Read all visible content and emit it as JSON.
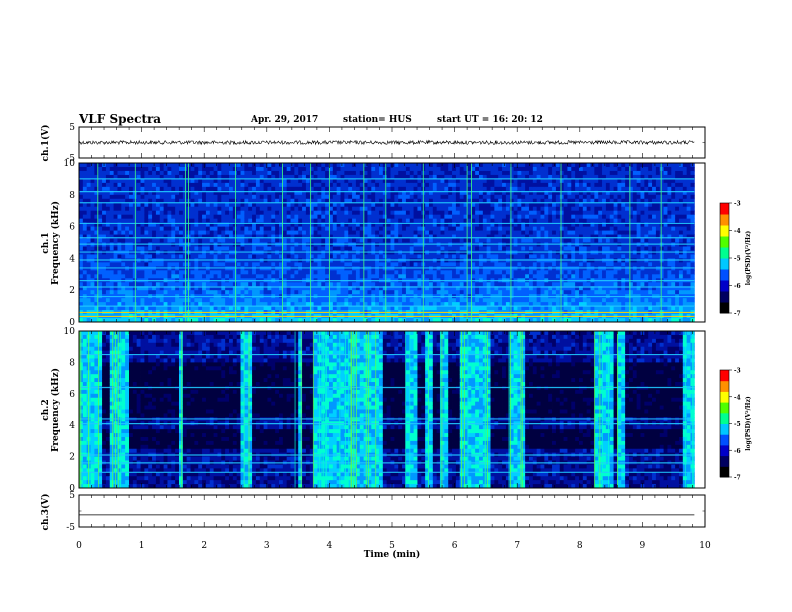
{
  "header": {
    "title": "VLF Spectra",
    "date": "Apr. 29, 2017",
    "station": "station= HUS",
    "start_ut": "start  UT =   16: 20: 12"
  },
  "colorbar": {
    "ticks": [
      "-3",
      "-4",
      "-5",
      "-6",
      "-7"
    ],
    "label": "log(PSD)(V²/Hz)",
    "colors": [
      "#000000",
      "#000060",
      "#0000c8",
      "#0050ff",
      "#00c8ff",
      "#00ff90",
      "#50ff00",
      "#ffff00",
      "#ff9000",
      "#ff0000",
      "#ffffff"
    ]
  },
  "chart_data": [
    {
      "type": "line",
      "panel": "ch1-waveform",
      "ylabel": "ch.1(V)",
      "ylim": [
        -5,
        5
      ],
      "ytick_labels": [
        "5",
        "-5"
      ],
      "xlim": [
        0,
        10
      ],
      "series": [
        {
          "x": [
            0,
            9.83
          ],
          "y": [
            0,
            0
          ]
        }
      ],
      "amplitude_band_V": 0.6
    },
    {
      "type": "heatmap",
      "panel": "ch1-spectrogram",
      "ylabel": "ch.1\nFrequency (kHz)",
      "ylim": [
        0,
        10
      ],
      "ytick_labels": [
        "0",
        "2",
        "4",
        "6",
        "8",
        "10"
      ],
      "xlim": [
        0,
        10
      ],
      "data_end_min": 9.83,
      "horizontal_lines_kHz": [
        0.35,
        0.6,
        1.0,
        1.6,
        2.2,
        2.6,
        3.4,
        3.9,
        4.4,
        4.9,
        5.3,
        6.2,
        7.5,
        8.2,
        9.0
      ],
      "bright_vertical_times_min": [
        0.3,
        0.9,
        1.7,
        1.75,
        2.5,
        3.25,
        3.7,
        4.0,
        4.55,
        4.9,
        5.5,
        6.2,
        6.27,
        6.9,
        7.7,
        8.8,
        9.3
      ]
    },
    {
      "type": "heatmap",
      "panel": "ch2-spectrogram",
      "ylabel": "ch.2\nFrequency (kHz)",
      "ylim": [
        0,
        10
      ],
      "ytick_labels": [
        "0",
        "2",
        "4",
        "6",
        "8",
        "10"
      ],
      "xlim": [
        0,
        10
      ],
      "data_end_min": 9.83,
      "horizontal_lines_kHz": [
        1.0,
        1.6,
        2.1,
        4.1,
        4.4,
        6.4,
        8.5
      ],
      "active_intervals_min": [
        [
          0.0,
          0.35
        ],
        [
          0.45,
          0.75
        ],
        [
          1.55,
          1.65
        ],
        [
          2.55,
          2.75
        ],
        [
          3.45,
          3.55
        ],
        [
          3.72,
          4.85
        ],
        [
          5.2,
          5.35
        ],
        [
          5.5,
          5.6
        ],
        [
          5.75,
          5.85
        ],
        [
          6.05,
          6.55
        ],
        [
          6.85,
          7.1
        ],
        [
          8.2,
          8.5
        ],
        [
          8.6,
          8.7
        ],
        [
          9.6,
          9.82
        ]
      ]
    },
    {
      "type": "line",
      "panel": "ch3-waveform",
      "ylabel": "ch.3(V)",
      "ylim": [
        -5,
        5
      ],
      "ytick_labels": [
        "5",
        "-5"
      ],
      "xlim": [
        0,
        10
      ],
      "series": [
        {
          "x": [
            0,
            9.83
          ],
          "y": [
            -1.2,
            -1.2
          ]
        }
      ]
    }
  ],
  "xaxis": {
    "label": "Time (min)",
    "ticks": [
      "0",
      "1",
      "2",
      "3",
      "4",
      "5",
      "6",
      "7",
      "8",
      "9",
      "10"
    ]
  }
}
